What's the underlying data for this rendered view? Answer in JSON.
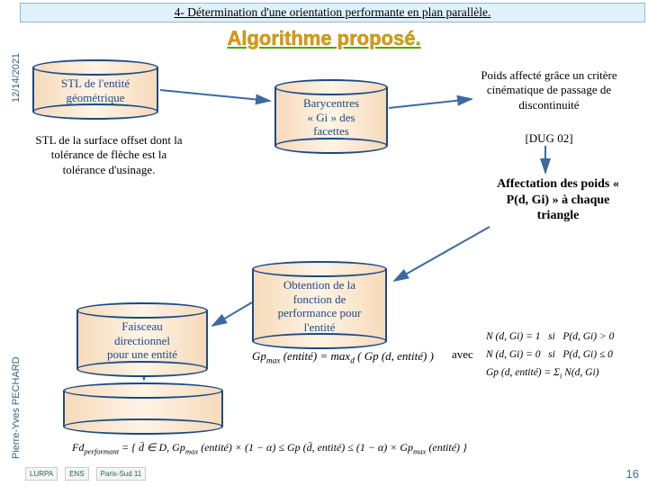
{
  "header": {
    "section": "4- Détermination d'une orientation performante en plan parallèle."
  },
  "meta": {
    "date": "12/14/2021",
    "author": "Pierre-Yves PECHARD",
    "page": "16"
  },
  "title": "Algorithme proposé.",
  "cylinders": {
    "stl_entity": {
      "line1": "STL de l'entité",
      "line2": "géométrique"
    },
    "barycenters": {
      "line1": "Barycentres",
      "line2": "« Gi » des",
      "line3": "facettes"
    },
    "beam": {
      "line1": "Faisceau",
      "line2": "directionnel",
      "line3": "pour une entité"
    },
    "perf_fn": {
      "line1": "Obtention de la",
      "line2": "fonction de",
      "line3": "performance pour",
      "line4": "l'entité"
    }
  },
  "texts": {
    "offset_stl": "STL de la surface offset dont la tolérance de flèche est la tolérance d'usinage.",
    "weight_crit": "Poids affecté grâce un critère cinématique de passage de discontinuité",
    "ref": "[DUG 02]",
    "assign_weights": "Affectation des poids « P(d, Gi) » à chaque triangle",
    "avec": "avec"
  },
  "formulas": {
    "gp_max": "Gp<sub>max</sub> (entité) = max<sub>d</sub> ( Gp (d, entité) )",
    "cond1": "N (d, Gi) = 1&nbsp;&nbsp;&nbsp;si&nbsp;&nbsp;&nbsp;P(d, Gi) > 0",
    "cond2": "N (d, Gi) = 0&nbsp;&nbsp;&nbsp;si&nbsp;&nbsp;&nbsp;P(d, Gi) ≤ 0",
    "gp_def": "Gp (d, entité) = Σ<sub>i</sub> N(d, Gi)",
    "fd_perf": "Fd<sub>performant</sub> = { d̄ ∈ D, Gp<sub>max</sub> (entité) × (1 − α) ≤ Gp (d̄, entité) ≤ (1 − α) × Gp<sub>max</sub> (entité) }"
  },
  "colors": {
    "cyl_fill": "#f8e7cf",
    "cyl_border": "#1a4a85",
    "title": "#ff8a15",
    "arrow": "#3b6aa0"
  }
}
